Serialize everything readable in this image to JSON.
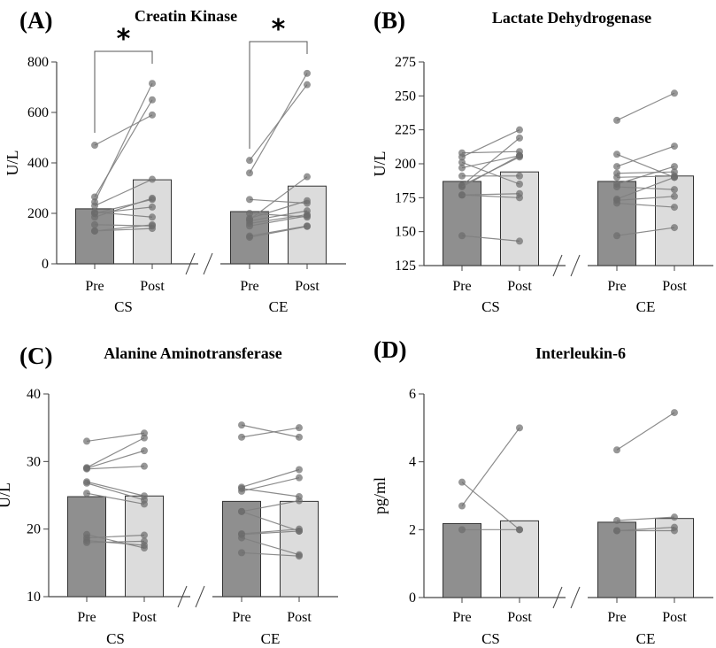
{
  "chart_data": [
    {
      "type": "bar",
      "panel_tag": "(A)",
      "title": "Creatin Kinase",
      "ylabel": "U/L",
      "ylim": [
        0,
        800
      ],
      "yticks": [
        0,
        200,
        400,
        600,
        800
      ],
      "categories": [
        "Pre",
        "Post"
      ],
      "groups": [
        "CS",
        "CE"
      ],
      "series": [
        {
          "group": "CS",
          "means": [
            218,
            333
          ],
          "pairs": [
            [
              470,
              590
            ],
            [
              265,
              650
            ],
            [
              245,
              715
            ],
            [
              230,
              335
            ],
            [
              200,
              255
            ],
            [
              205,
              185
            ],
            [
              185,
              260
            ],
            [
              200,
              225
            ],
            [
              155,
              150
            ],
            [
              130,
              155
            ],
            [
              130,
              140
            ]
          ],
          "significance": "*"
        },
        {
          "group": "CE",
          "means": [
            207,
            308
          ],
          "pairs": [
            [
              410,
              710
            ],
            [
              360,
              755
            ],
            [
              255,
              240
            ],
            [
              200,
              185
            ],
            [
              180,
              250
            ],
            [
              175,
              345
            ],
            [
              170,
              210
            ],
            [
              160,
              195
            ],
            [
              150,
              190
            ],
            [
              110,
              150
            ],
            [
              105,
              148
            ]
          ],
          "significance": "*"
        }
      ]
    },
    {
      "type": "bar",
      "panel_tag": "(B)",
      "title": "Lactate Dehydrogenase",
      "ylabel": "U/L",
      "ylim": [
        125,
        275
      ],
      "yticks": [
        125,
        150,
        175,
        200,
        225,
        250,
        275
      ],
      "categories": [
        "Pre",
        "Post"
      ],
      "groups": [
        "CS",
        "CE"
      ],
      "series": [
        {
          "group": "CS",
          "means": [
            187,
            194
          ],
          "pairs": [
            [
              208,
              209
            ],
            [
              205,
              225
            ],
            [
              201,
              185
            ],
            [
              197,
              206
            ],
            [
              191,
              191
            ],
            [
              184,
              219
            ],
            [
              184,
              205
            ],
            [
              183,
              206
            ],
            [
              177,
              178
            ],
            [
              177,
              175
            ],
            [
              147,
              143
            ]
          ]
        },
        {
          "group": "CE",
          "means": [
            187,
            191
          ],
          "pairs": [
            [
              232,
              252
            ],
            [
              207,
              190
            ],
            [
              198,
              213
            ],
            [
              193,
              194
            ],
            [
              190,
              191
            ],
            [
              185,
              198
            ],
            [
              183,
              181
            ],
            [
              174,
              190
            ],
            [
              173,
              176
            ],
            [
              171,
              168
            ],
            [
              147,
              153
            ]
          ]
        }
      ]
    },
    {
      "type": "bar",
      "panel_tag": "(C)",
      "title": "Alanine Aminotransferase",
      "ylabel": "U/L",
      "ylim": [
        10,
        40
      ],
      "yticks": [
        10,
        20,
        30,
        40
      ],
      "categories": [
        "Pre",
        "Post"
      ],
      "groups": [
        "CS",
        "CE"
      ],
      "series": [
        {
          "group": "CS",
          "means": [
            24.8,
            24.9
          ],
          "pairs": [
            [
              33,
              34.2
            ],
            [
              29.1,
              33.5
            ],
            [
              29,
              31.6
            ],
            [
              28.9,
              29.3
            ],
            [
              27,
              24.9
            ],
            [
              26.8,
              24.3
            ],
            [
              25.3,
              23.7
            ],
            [
              19.2,
              17.2
            ],
            [
              18.7,
              19.1
            ],
            [
              18.3,
              17.6
            ],
            [
              18,
              18.2
            ]
          ]
        },
        {
          "group": "CE",
          "means": [
            24.1,
            24.1
          ],
          "pairs": [
            [
              35.4,
              33.6
            ],
            [
              33.6,
              35
            ],
            [
              26.2,
              28.8
            ],
            [
              26,
              24.8
            ],
            [
              25.6,
              27.6
            ],
            [
              22.6,
              19.7
            ],
            [
              22.6,
              24.2
            ],
            [
              19.3,
              20
            ],
            [
              19.2,
              19.7
            ],
            [
              18.7,
              16.2
            ],
            [
              16.5,
              16
            ]
          ]
        }
      ]
    },
    {
      "type": "bar",
      "panel_tag": "(D)",
      "title": "Interleukin-6",
      "ylabel": "pg/ml",
      "ylim": [
        0,
        6
      ],
      "yticks": [
        0,
        2,
        4,
        6
      ],
      "categories": [
        "Pre",
        "Post"
      ],
      "groups": [
        "CS",
        "CE"
      ],
      "series": [
        {
          "group": "CS",
          "means": [
            2.18,
            2.26
          ],
          "pairs": [
            [
              3.4,
              2.0
            ],
            [
              2.7,
              5.0
            ],
            [
              2.0,
              2.0
            ]
          ]
        },
        {
          "group": "CE",
          "means": [
            2.22,
            2.33
          ],
          "pairs": [
            [
              4.35,
              5.45
            ],
            [
              2.27,
              2.37
            ],
            [
              1.97,
              2.07
            ],
            [
              1.97,
              1.97
            ]
          ]
        }
      ]
    }
  ],
  "colors": {
    "pre_bar": "#8f8f8f",
    "post_bar": "#dcdcdc",
    "point": "#6b6b6b",
    "line": "#808080"
  }
}
